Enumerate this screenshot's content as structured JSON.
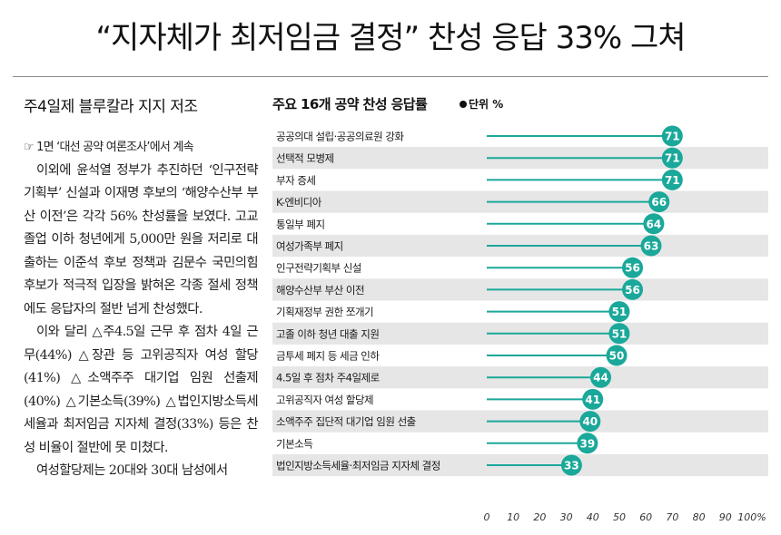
{
  "headline": "“지자체가 최저임금 결정” 찬성 응답 33% 그쳐",
  "article": {
    "subhead": "주4일제 블루칼라 지지 저조",
    "ref": "☞ 1면 ‘대선 공약 여론조사’에서 계속",
    "paragraphs": [
      "이외에 윤석열 정부가 추진하던 ‘인구전략기획부’ 신설과 이재명 후보의 ‘해양수산부 부산 이전’은 각각 56% 찬성률을 보였다. 고교 졸업 이하 청년에게 5,000만 원을 저리로 대출하는 이준석 후보 정책과 김문수 국민의힘 후보가 적극적 입장을 밝혀온 각종 절세 정책에도 응답자의 절반 넘게 찬성했다.",
      "이와 달리 △주4.5일 근무 후 점차 4일 근무(44%) △장관 등 고위공직자 여성 할당(41%) △소액주주 대기업 임원 선출제(40%) △기본소득(39%) △법인지방소득세 세율과 최저임금 지자체 결정(33%) 등은 찬성 비율이 절반에 못 미쳤다.",
      "여성할당제는 20대와 30대 남성에서"
    ]
  },
  "chart_data": {
    "type": "bar",
    "orientation": "horizontal",
    "title": "주요 16개 공약 찬성 응답률",
    "unit": "단위 %",
    "categories": [
      "공공의대 설립·공공의료원 강화",
      "선택적 모병제",
      "부자 증세",
      "K-엔비디아",
      "통일부 폐지",
      "여성가족부 폐지",
      "인구전략기획부 신설",
      "해양수산부 부산 이전",
      "기획재정부 권한 쪼개기",
      "고졸 이하 청년 대출 지원",
      "금투세 폐지 등 세금 인하",
      "4.5일 후 점차 주4일제로",
      "고위공직자 여성 할당제",
      "소액주주 집단적 대기업 임원 선출",
      "기본소득",
      "법인지방소득세율·최저임금 지자체 결정"
    ],
    "values": [
      71,
      71,
      71,
      66,
      64,
      63,
      56,
      56,
      51,
      51,
      50,
      44,
      41,
      40,
      39,
      33
    ],
    "xlim": [
      0,
      100
    ],
    "ticks": [
      "0",
      "10",
      "20",
      "30",
      "40",
      "50",
      "60",
      "70",
      "80",
      "90",
      "100%"
    ],
    "colors": {
      "bar": "#1aa89a",
      "stripe": "#e6e6e6",
      "label_text": "#ffffff"
    }
  }
}
